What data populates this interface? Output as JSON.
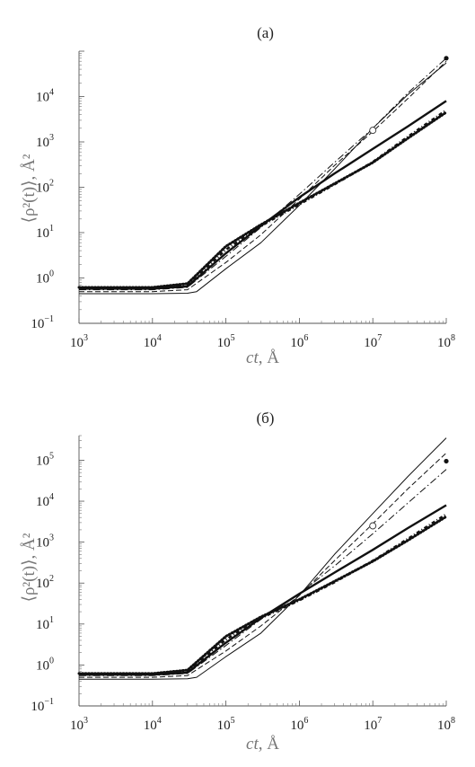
{
  "chart_data": [
    {
      "type": "line",
      "panel_label": "(a)",
      "xlabel_main": "ct",
      "xlabel_unit": ", Å",
      "ylabel_main": "⟨ρ²(t)⟩",
      "ylabel_unit": ", Å²",
      "x_scale": "log",
      "y_scale": "log",
      "xlim": [
        1000,
        100000000
      ],
      "ylim": [
        0.1,
        100000
      ],
      "x_ticks": [
        {
          "value": 1000,
          "base": "10",
          "exp": "3"
        },
        {
          "value": 10000,
          "base": "10",
          "exp": "4"
        },
        {
          "value": 100000,
          "base": "10",
          "exp": "5"
        },
        {
          "value": 1000000,
          "base": "10",
          "exp": "6"
        },
        {
          "value": 10000000,
          "base": "10",
          "exp": "7"
        },
        {
          "value": 100000000,
          "base": "10",
          "exp": "8"
        }
      ],
      "y_ticks": [
        {
          "value": 0.1,
          "base": "10",
          "exp": "−1"
        },
        {
          "value": 1,
          "base": "10",
          "exp": "0"
        },
        {
          "value": 10,
          "base": "10",
          "exp": "1"
        },
        {
          "value": 100,
          "base": "10",
          "exp": "2"
        },
        {
          "value": 1000,
          "base": "10",
          "exp": "3"
        },
        {
          "value": 10000,
          "base": "10",
          "exp": "4"
        }
      ],
      "grid": false,
      "series": [
        {
          "style": "thin-solid",
          "x": [
            1000,
            10000,
            30000,
            40000,
            100000,
            300000,
            1000000,
            3000000,
            10000000,
            30000000,
            100000000
          ],
          "y": [
            0.45,
            0.45,
            0.46,
            0.5,
            1.6,
            6,
            40,
            250,
            2000,
            11000,
            55000
          ]
        },
        {
          "style": "thick-solid",
          "x": [
            1000,
            10000,
            30000,
            100000,
            300000,
            1000000,
            3000000,
            10000000,
            30000000,
            100000000
          ],
          "y": [
            0.58,
            0.58,
            0.65,
            3.5,
            14,
            60,
            200,
            700,
            2200,
            8000
          ]
        },
        {
          "style": "dashed",
          "x": [
            1000,
            10000,
            30000,
            100000,
            300000,
            1000000,
            3000000,
            10000000,
            30000000,
            100000000
          ],
          "y": [
            0.5,
            0.5,
            0.55,
            2.2,
            9,
            55,
            300,
            1700,
            9000,
            60000
          ]
        },
        {
          "style": "dash-dot",
          "x": [
            1000,
            10000,
            30000,
            100000,
            300000,
            1000000,
            3000000,
            10000000,
            30000000,
            100000000
          ],
          "y": [
            0.55,
            0.55,
            0.62,
            3,
            13,
            70,
            350,
            2000,
            12000,
            70000
          ]
        },
        {
          "style": "dotted-thick",
          "x": [
            1000,
            10000,
            30000,
            100000,
            300000,
            1000000,
            3000000,
            10000000,
            30000000,
            100000000
          ],
          "y": [
            0.62,
            0.62,
            0.75,
            5,
            15,
            45,
            120,
            350,
            1200,
            4500
          ]
        },
        {
          "style": "dash-dot-thick",
          "x": [
            1000,
            10000,
            30000,
            100000,
            300000,
            1000000,
            3000000,
            10000000,
            30000000,
            100000000
          ],
          "y": [
            0.6,
            0.6,
            0.7,
            4.2,
            14,
            42,
            115,
            360,
            1300,
            5000
          ]
        }
      ],
      "markers": [
        {
          "kind": "open-circle",
          "x": 10000000,
          "y": 1800
        },
        {
          "kind": "filled-dot",
          "x": 100000000,
          "y": 70000
        }
      ]
    },
    {
      "type": "line",
      "panel_label": "(б)",
      "xlabel_main": "ct",
      "xlabel_unit": ", Å",
      "ylabel_main": "⟨ρ²(t)⟩",
      "ylabel_unit": ", Å²",
      "x_scale": "log",
      "y_scale": "log",
      "xlim": [
        1000,
        100000000
      ],
      "ylim": [
        0.1,
        400000
      ],
      "x_ticks": [
        {
          "value": 1000,
          "base": "10",
          "exp": "3"
        },
        {
          "value": 10000,
          "base": "10",
          "exp": "4"
        },
        {
          "value": 100000,
          "base": "10",
          "exp": "5"
        },
        {
          "value": 1000000,
          "base": "10",
          "exp": "6"
        },
        {
          "value": 10000000,
          "base": "10",
          "exp": "7"
        },
        {
          "value": 100000000,
          "base": "10",
          "exp": "8"
        }
      ],
      "y_ticks": [
        {
          "value": 0.1,
          "base": "10",
          "exp": "−1"
        },
        {
          "value": 1,
          "base": "10",
          "exp": "0"
        },
        {
          "value": 10,
          "base": "10",
          "exp": "1"
        },
        {
          "value": 100,
          "base": "10",
          "exp": "2"
        },
        {
          "value": 1000,
          "base": "10",
          "exp": "3"
        },
        {
          "value": 10000,
          "base": "10",
          "exp": "4"
        },
        {
          "value": 100000,
          "base": "10",
          "exp": "5"
        }
      ],
      "grid": false,
      "series": [
        {
          "style": "thin-solid",
          "x": [
            1000,
            10000,
            30000,
            40000,
            100000,
            300000,
            1000000,
            3000000,
            10000000,
            30000000,
            100000000
          ],
          "y": [
            0.45,
            0.45,
            0.46,
            0.5,
            1.6,
            6,
            50,
            500,
            5000,
            40000,
            350000
          ]
        },
        {
          "style": "thick-solid",
          "x": [
            1000,
            10000,
            30000,
            100000,
            300000,
            1000000,
            3000000,
            10000000,
            30000000,
            100000000
          ],
          "y": [
            0.58,
            0.58,
            0.65,
            3.5,
            14,
            55,
            180,
            650,
            2200,
            8000
          ]
        },
        {
          "style": "dashed",
          "x": [
            1000,
            10000,
            30000,
            100000,
            300000,
            1000000,
            3000000,
            10000000,
            30000000,
            100000000
          ],
          "y": [
            0.5,
            0.5,
            0.55,
            2.2,
            9,
            50,
            350,
            2800,
            20000,
            150000
          ]
        },
        {
          "style": "dash-dot",
          "x": [
            1000,
            10000,
            30000,
            100000,
            300000,
            1000000,
            3000000,
            10000000,
            30000000,
            100000000
          ],
          "y": [
            0.55,
            0.55,
            0.62,
            3,
            13,
            55,
            260,
            1600,
            9000,
            60000
          ]
        },
        {
          "style": "dotted-thick",
          "x": [
            1000,
            10000,
            30000,
            100000,
            300000,
            1000000,
            3000000,
            10000000,
            30000000,
            100000000
          ],
          "y": [
            0.62,
            0.62,
            0.75,
            5,
            15,
            40,
            110,
            340,
            1100,
            4200
          ]
        },
        {
          "style": "dash-dot-thick",
          "x": [
            1000,
            10000,
            30000,
            100000,
            300000,
            1000000,
            3000000,
            10000000,
            30000000,
            100000000
          ],
          "y": [
            0.6,
            0.6,
            0.7,
            4.2,
            14,
            38,
            105,
            350,
            1200,
            4800
          ]
        }
      ],
      "markers": [
        {
          "kind": "open-circle",
          "x": 10000000,
          "y": 2500
        },
        {
          "kind": "filled-dot",
          "x": 100000000,
          "y": 95000
        }
      ]
    }
  ]
}
